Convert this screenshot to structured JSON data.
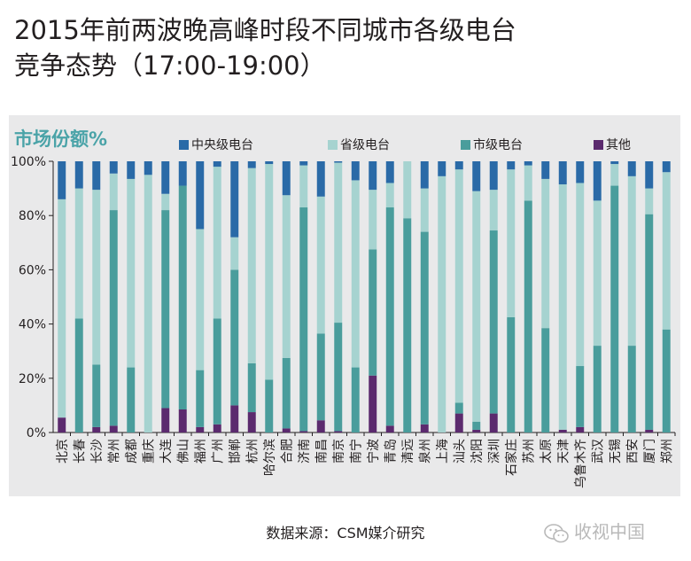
{
  "title_line1": "2015年前两波晚高峰时段不同城市各级电台",
  "title_line2": "竞争态势（17:00-19:00）",
  "source": "数据来源：CSM媒介研究",
  "watermark": "收视中国",
  "chart_data": {
    "type": "bar",
    "stacked": true,
    "orientation": "vertical",
    "title": "2015年前两波晚高峰时段不同城市各级电台竞争态势（17:00-19:00）",
    "ylabel": "市场份额%",
    "ylim": [
      0,
      100
    ],
    "yticks": [
      "0%",
      "20%",
      "40%",
      "60%",
      "80%",
      "100%"
    ],
    "ytick_values": [
      0,
      20,
      40,
      60,
      80,
      100
    ],
    "legend_position": "top",
    "categories": [
      "北京",
      "长春",
      "长沙",
      "常州",
      "成都",
      "重庆",
      "大连",
      "佛山",
      "福州",
      "广州",
      "邯郸",
      "杭州",
      "哈尔滨",
      "合肥",
      "济南",
      "南昌",
      "南京",
      "南宁",
      "宁波",
      "青岛",
      "清远",
      "泉州",
      "上海",
      "汕头",
      "沈阳",
      "深圳",
      "石家庄",
      "苏州",
      "太原",
      "天津",
      "乌鲁木齐",
      "武汉",
      "无锡",
      "西安",
      "厦门",
      "郑州"
    ],
    "series": [
      {
        "name": "其他",
        "color": "#5b2a6e",
        "values": [
          5.5,
          0,
          2,
          2.5,
          0,
          0,
          9,
          8.5,
          2,
          3,
          10,
          7.5,
          0,
          1.5,
          0.5,
          4.5,
          0.5,
          0,
          21,
          2.5,
          0,
          3,
          0,
          7,
          1,
          7,
          0,
          0,
          0,
          1,
          2,
          0,
          0,
          0,
          1,
          0
        ]
      },
      {
        "name": "市级电台",
        "color": "#4a9d9c",
        "values": [
          0,
          42,
          23,
          79.5,
          24,
          0,
          73,
          82.5,
          21,
          39,
          50,
          18,
          19.5,
          26,
          82.5,
          32,
          40,
          24,
          46.5,
          80.5,
          79,
          71,
          0,
          4,
          3,
          67.5,
          42.5,
          85.5,
          38.5,
          0,
          22.5,
          32,
          91,
          32,
          79.5,
          38
        ]
      },
      {
        "name": "省级电台",
        "color": "#a6d3d0",
        "values": [
          80.5,
          48,
          64.5,
          13.5,
          69.5,
          95,
          6,
          0,
          52,
          56,
          12,
          72,
          79.5,
          60,
          15.5,
          50.5,
          59,
          69,
          22,
          9,
          21,
          16,
          94.5,
          86,
          85,
          15,
          54.5,
          13,
          55,
          90.5,
          67.5,
          53.5,
          8,
          62.5,
          9.5,
          58
        ]
      },
      {
        "name": "中央级电台",
        "color": "#2a6aa7",
        "values": [
          14,
          10,
          10.5,
          4.5,
          6.5,
          5,
          12,
          9,
          25,
          2,
          28,
          2.5,
          1,
          12.5,
          1.5,
          13,
          0.5,
          7,
          10.5,
          8,
          0,
          10,
          5.5,
          3,
          11,
          10.5,
          3,
          1.5,
          6.5,
          8.5,
          8,
          14.5,
          1,
          5.5,
          10,
          4
        ]
      }
    ]
  }
}
